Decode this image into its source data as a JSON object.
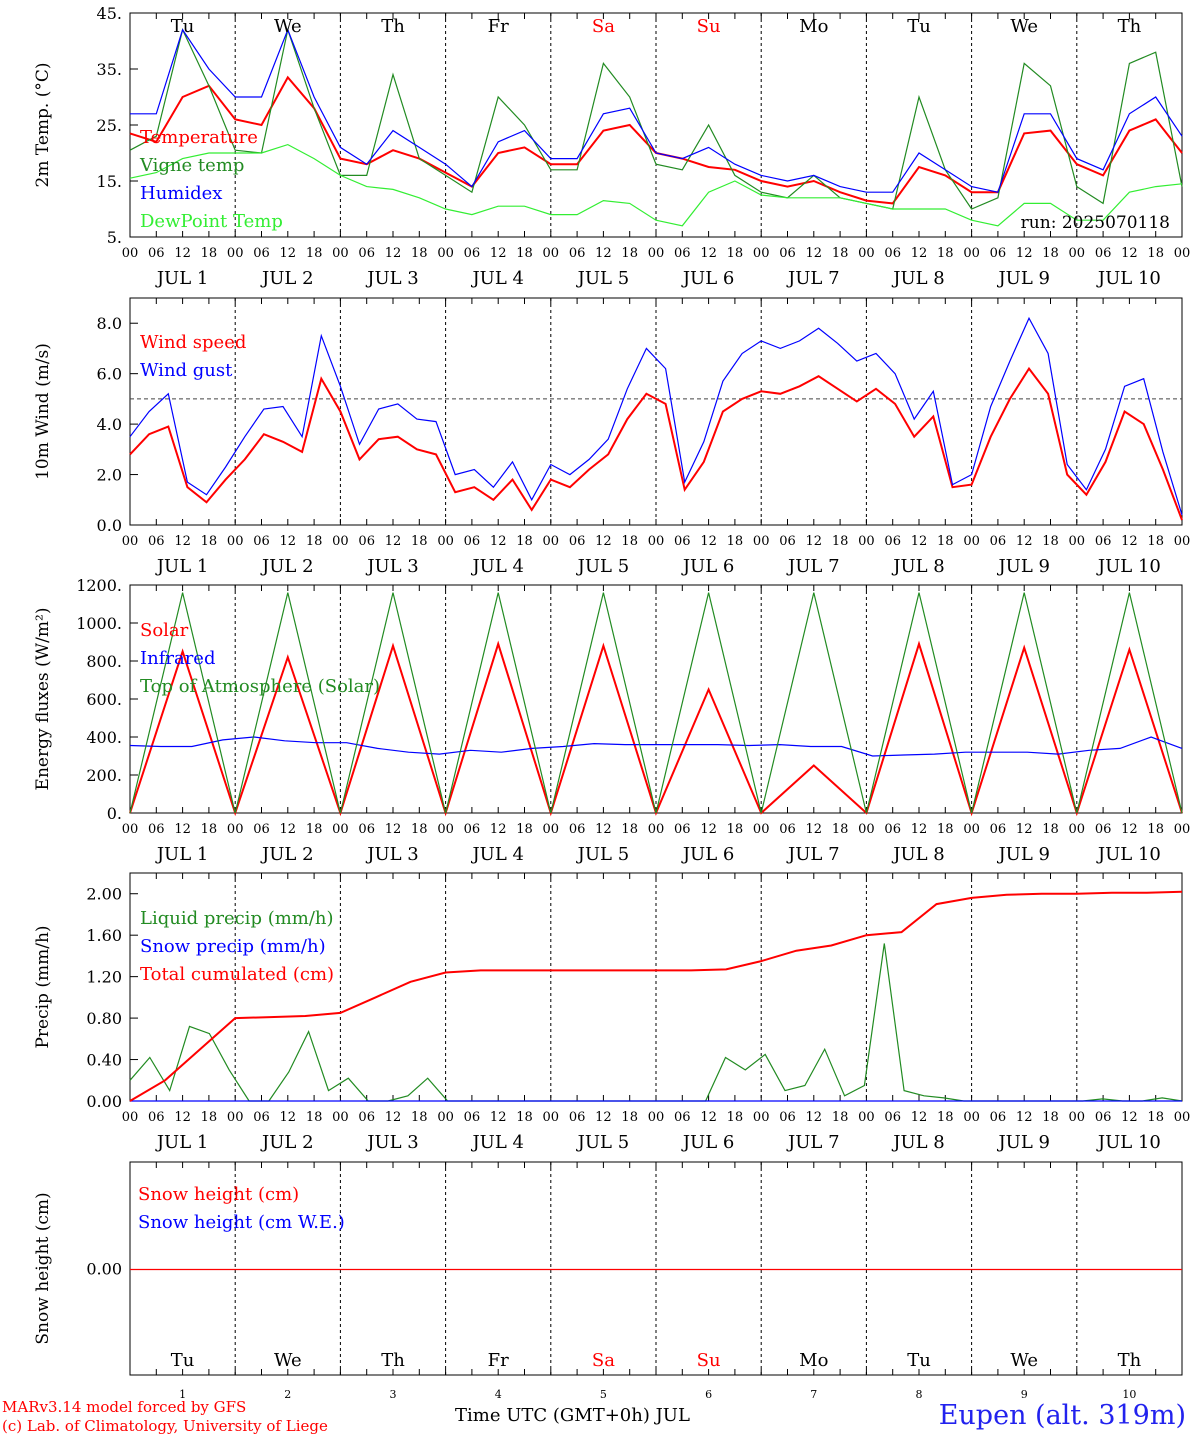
{
  "chart_data": [
    {
      "type": "line",
      "ylabel": "2m Temp. (°C)",
      "ylim": [
        5,
        45
      ],
      "yticks": [
        "45.",
        "35.",
        "25.",
        "15.",
        "5."
      ],
      "run_label": "run: 2025070118",
      "grid": "vertical dashed day separators",
      "x_hours": [
        0,
        6,
        12,
        18,
        24,
        30,
        36,
        42,
        48,
        54,
        60,
        66,
        72,
        78,
        84,
        90,
        96,
        102,
        108,
        114,
        120,
        126,
        132,
        138,
        144,
        150,
        156,
        162,
        168,
        174,
        180,
        186,
        192,
        198,
        204,
        210,
        216,
        222,
        228,
        234,
        240
      ],
      "series": [
        {
          "name": "Temperature",
          "color": "#ff0000",
          "values": [
            23.5,
            22,
            30,
            32,
            26,
            25,
            33.5,
            28,
            19,
            18,
            20.5,
            19,
            16.5,
            14,
            20,
            21,
            18,
            18,
            24,
            25,
            20,
            19,
            17.5,
            17,
            15,
            14,
            15,
            13,
            11.5,
            11,
            17.5,
            16,
            13,
            13,
            23.5,
            24,
            18,
            16,
            24,
            26,
            20
          ]
        },
        {
          "name": "Vigne temp",
          "color": "#228b22",
          "values": [
            20.5,
            23,
            42,
            32,
            20.5,
            20,
            42,
            28,
            16,
            16,
            34,
            19,
            16,
            13,
            30,
            25,
            17,
            17,
            36,
            30,
            18,
            17,
            25,
            16,
            13,
            12,
            16,
            12,
            11,
            10,
            30,
            17,
            10,
            12,
            36,
            32,
            14,
            11,
            36,
            38,
            14
          ]
        },
        {
          "name": "Humidex",
          "color": "#0000ff",
          "values": [
            27,
            27,
            42,
            35,
            30,
            30,
            42,
            30,
            21,
            18,
            24,
            21,
            18,
            14,
            22,
            24,
            19,
            19,
            27,
            28,
            20,
            19,
            21,
            18,
            16,
            15,
            16,
            14,
            13,
            13,
            20,
            17,
            14,
            13,
            27,
            27,
            19,
            17,
            27,
            30,
            23
          ]
        },
        {
          "name": "DewPoint Temp",
          "color": "#33ee33",
          "values": [
            15.5,
            16.5,
            19,
            20,
            20,
            20,
            21.5,
            19,
            16,
            14,
            13.5,
            12,
            10,
            9,
            10.5,
            10.5,
            9,
            9,
            11.5,
            11,
            8,
            7,
            13,
            15,
            12.5,
            12,
            12,
            12,
            11,
            10,
            10,
            10,
            8,
            7,
            11,
            11,
            8,
            8,
            13,
            14,
            14.5
          ]
        }
      ]
    },
    {
      "type": "line",
      "ylabel": "10m Wind (m/s)",
      "ylim": [
        0,
        9
      ],
      "yticks": [
        "8.0",
        "6.0",
        "4.0",
        "2.0",
        "0.0"
      ],
      "reference_line": 5.0,
      "series": [
        {
          "name": "Wind speed",
          "color": "#ff0000",
          "values": [
            2.8,
            3.6,
            3.9,
            1.5,
            0.9,
            1.8,
            2.6,
            3.6,
            3.3,
            2.9,
            5.8,
            4.5,
            2.6,
            3.4,
            3.5,
            3,
            2.8,
            1.3,
            1.5,
            1,
            1.8,
            0.6,
            1.8,
            1.5,
            2.2,
            2.8,
            4.2,
            5.2,
            4.8,
            1.4,
            2.5,
            4.5,
            5.0,
            5.3,
            5.2,
            5.5,
            5.9,
            5.4,
            4.9,
            5.4,
            4.8,
            3.5,
            4.3,
            1.5,
            1.6,
            3.5,
            5,
            6.2,
            5.2,
            2.0,
            1.2,
            2.5,
            4.5,
            4.0,
            2.2,
            0.2
          ]
        },
        {
          "name": "Wind gust",
          "color": "#0000ff",
          "values": [
            3.5,
            4.5,
            5.2,
            1.7,
            1.2,
            2.3,
            3.5,
            4.6,
            4.7,
            3.5,
            7.5,
            5.5,
            3.2,
            4.6,
            4.8,
            4.2,
            4.1,
            2,
            2.2,
            1.5,
            2.5,
            1,
            2.4,
            2,
            2.6,
            3.4,
            5.4,
            7,
            6.2,
            1.7,
            3.3,
            5.7,
            6.8,
            7.3,
            7,
            7.3,
            7.8,
            7.2,
            6.5,
            6.8,
            6,
            4.2,
            5.3,
            1.6,
            2,
            4.7,
            6.5,
            8.2,
            6.8,
            2.4,
            1.4,
            3,
            5.5,
            5.8,
            2.9,
            0.4
          ]
        }
      ]
    },
    {
      "type": "line",
      "ylabel": "Energy fluxes (W/m²)",
      "ylim": [
        0,
        1200
      ],
      "yticks": [
        "1200.",
        "1000.",
        "800.",
        "600.",
        "400.",
        "200.",
        "0."
      ],
      "series": [
        {
          "name": "Solar",
          "color": "#ff0000",
          "values": [
            0,
            850,
            0,
            820,
            0,
            880,
            0,
            890,
            0,
            880,
            0,
            650,
            0,
            250,
            0,
            890,
            0,
            870,
            0,
            860,
            0
          ]
        },
        {
          "name": "Infrared",
          "color": "#0000ff",
          "values": [
            355,
            350,
            350,
            385,
            400,
            380,
            370,
            370,
            340,
            320,
            310,
            330,
            320,
            340,
            350,
            365,
            360,
            360,
            360,
            360,
            355,
            360,
            350,
            350,
            300,
            305,
            310,
            320,
            320,
            320,
            310,
            330,
            340,
            400,
            340
          ]
        },
        {
          "name": "Top of Atmosphere (Solar)",
          "color": "#228b22",
          "values": [
            0,
            1160,
            0,
            1160,
            0,
            1160,
            0,
            1160,
            0,
            1160,
            0,
            1160,
            0,
            1160,
            0,
            1160,
            0,
            1160,
            0,
            1160,
            0
          ]
        }
      ]
    },
    {
      "type": "line",
      "ylabel": "Precip (mm/h)",
      "ylim": [
        0,
        2.2
      ],
      "yticks": [
        "2.00",
        "1.60",
        "1.20",
        "0.80",
        "0.40",
        "0.00"
      ],
      "series": [
        {
          "name": "Liquid precip (mm/h)",
          "color": "#228b22",
          "values": [
            0.2,
            0.42,
            0.1,
            0.72,
            0.65,
            0.3,
            0,
            0,
            0.28,
            0.67,
            0.1,
            0.22,
            0,
            0,
            0.05,
            0.22,
            0,
            0,
            0,
            0,
            0,
            0,
            0,
            0,
            0,
            0,
            0,
            0,
            0,
            0,
            0.42,
            0.3,
            0.45,
            0.1,
            0.15,
            0.5,
            0.05,
            0.15,
            1.52,
            0.1,
            0.05,
            0.03,
            0,
            0,
            0,
            0,
            0,
            0,
            0,
            0.02,
            0,
            0,
            0.03,
            0
          ]
        },
        {
          "name": "Snow precip (mm/h)",
          "color": "#0000ff",
          "values": [
            0,
            0,
            0,
            0,
            0,
            0,
            0,
            0,
            0,
            0,
            0,
            0,
            0,
            0,
            0,
            0,
            0,
            0,
            0,
            0,
            0,
            0,
            0
          ]
        },
        {
          "name": "Total cumulated (cm)",
          "color": "#ff0000",
          "values": [
            0,
            0.2,
            0.5,
            0.8,
            0.81,
            0.82,
            0.85,
            1.0,
            1.15,
            1.24,
            1.26,
            1.26,
            1.26,
            1.26,
            1.26,
            1.26,
            1.26,
            1.27,
            1.35,
            1.45,
            1.5,
            1.6,
            1.63,
            1.9,
            1.96,
            1.99,
            2.0,
            2.0,
            2.01,
            2.01,
            2.02
          ]
        }
      ]
    },
    {
      "type": "line",
      "ylabel": "Snow height (cm)",
      "yticks": [
        "0.00"
      ],
      "series": [
        {
          "name": "Snow height (cm)",
          "color": "#ff0000",
          "values": [
            0,
            0
          ]
        },
        {
          "name": "Snow height (cm W.E.)",
          "color": "#0000ff",
          "values": [
            0,
            0
          ]
        }
      ]
    }
  ],
  "hour_ticks": [
    "00",
    "06",
    "12",
    "18"
  ],
  "end_tick": "00",
  "days": [
    {
      "weekday": "Tu",
      "date": "JUL  1",
      "num": "1",
      "color": "#000000"
    },
    {
      "weekday": "We",
      "date": "JUL  2",
      "num": "2",
      "color": "#000000"
    },
    {
      "weekday": "Th",
      "date": "JUL  3",
      "num": "3",
      "color": "#000000"
    },
    {
      "weekday": "Fr",
      "date": "JUL  4",
      "num": "4",
      "color": "#000000"
    },
    {
      "weekday": "Sa",
      "date": "JUL  5",
      "num": "5",
      "color": "#ff0000"
    },
    {
      "weekday": "Su",
      "date": "JUL  6",
      "num": "6",
      "color": "#ff0000"
    },
    {
      "weekday": "Mo",
      "date": "JUL  7",
      "num": "7",
      "color": "#000000"
    },
    {
      "weekday": "Tu",
      "date": "JUL  8",
      "num": "8",
      "color": "#000000"
    },
    {
      "weekday": "We",
      "date": "JUL  9",
      "num": "9",
      "color": "#000000"
    },
    {
      "weekday": "Th",
      "date": "JUL 10",
      "num": "10",
      "color": "#000000"
    }
  ],
  "footer": {
    "model_line": "MARv3.14 model forced by GFS",
    "copyright": "(c) Lab. of Climatology, University of Liege",
    "xaxis_title": "Time UTC (GMT+0h) JUL",
    "station": "Eupen (alt. 319m)"
  }
}
